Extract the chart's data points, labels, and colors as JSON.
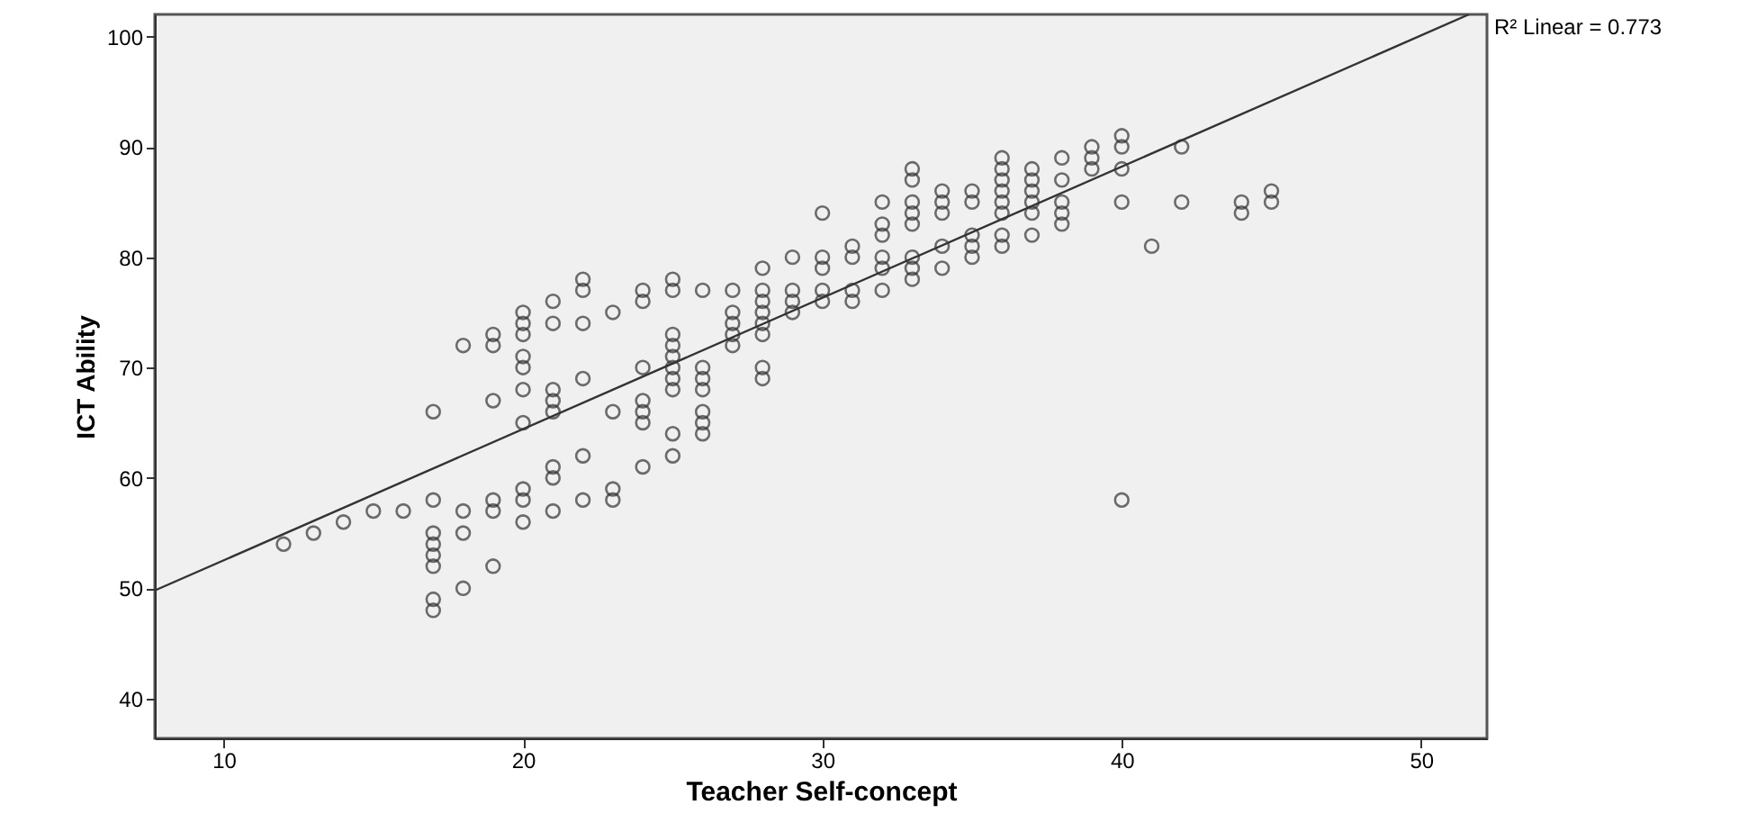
{
  "chart_data": {
    "type": "scatter",
    "xlabel": "Teacher Self-concept",
    "ylabel": "ICT Ability",
    "annotations": [
      "R² Linear = 0.773"
    ],
    "xlim": [
      7.7,
      52.2
    ],
    "ylim": [
      36.4,
      102
    ],
    "xticks": [
      10,
      20,
      30,
      40,
      50
    ],
    "yticks": [
      40,
      50,
      60,
      70,
      80,
      90,
      100
    ],
    "grid": false,
    "series": [
      {
        "marker": "circle",
        "color": "#333333",
        "x": [
          12,
          13,
          14,
          15,
          16,
          17,
          17,
          17,
          17,
          17,
          17,
          17,
          17,
          18,
          18,
          18,
          18,
          19,
          19,
          19,
          19,
          19,
          19,
          20,
          20,
          20,
          20,
          20,
          20,
          20,
          20,
          20,
          20,
          21,
          21,
          21,
          21,
          21,
          21,
          21,
          21,
          22,
          22,
          22,
          22,
          22,
          22,
          23,
          23,
          23,
          23,
          24,
          24,
          24,
          24,
          24,
          24,
          24,
          25,
          25,
          25,
          25,
          25,
          25,
          25,
          25,
          25,
          25,
          26,
          26,
          26,
          26,
          26,
          26,
          26,
          27,
          27,
          27,
          27,
          27,
          28,
          28,
          28,
          28,
          28,
          28,
          28,
          28,
          29,
          29,
          29,
          29,
          30,
          30,
          30,
          30,
          30,
          31,
          31,
          31,
          31,
          32,
          32,
          32,
          32,
          32,
          32,
          33,
          33,
          33,
          33,
          33,
          33,
          33,
          33,
          34,
          34,
          34,
          34,
          34,
          35,
          35,
          35,
          35,
          35,
          36,
          36,
          36,
          36,
          36,
          36,
          36,
          36,
          37,
          37,
          37,
          37,
          37,
          37,
          38,
          38,
          38,
          38,
          38,
          39,
          39,
          39,
          40,
          40,
          40,
          40,
          40,
          41,
          42,
          42,
          44,
          44,
          45,
          45
        ],
        "values": [
          54,
          55,
          56,
          57,
          57,
          66,
          58,
          55,
          54,
          53,
          52,
          49,
          48,
          72,
          57,
          55,
          50,
          73,
          72,
          67,
          58,
          57,
          52,
          75,
          74,
          73,
          71,
          70,
          68,
          65,
          59,
          58,
          56,
          76,
          74,
          68,
          67,
          66,
          61,
          60,
          57,
          78,
          77,
          74,
          69,
          62,
          58,
          75,
          66,
          59,
          58,
          77,
          76,
          70,
          67,
          66,
          65,
          61,
          78,
          77,
          73,
          72,
          71,
          70,
          69,
          68,
          64,
          62,
          77,
          70,
          69,
          68,
          66,
          65,
          64,
          77,
          75,
          74,
          73,
          72,
          79,
          77,
          76,
          75,
          74,
          73,
          70,
          69,
          80,
          77,
          76,
          75,
          84,
          80,
          79,
          77,
          76,
          81,
          80,
          77,
          76,
          85,
          83,
          82,
          80,
          79,
          77,
          88,
          87,
          85,
          84,
          83,
          80,
          79,
          78,
          86,
          85,
          84,
          81,
          79,
          86,
          85,
          82,
          81,
          80,
          89,
          88,
          87,
          86,
          85,
          84,
          82,
          81,
          88,
          87,
          86,
          85,
          84,
          82,
          89,
          87,
          85,
          84,
          83,
          90,
          89,
          88,
          91,
          90,
          88,
          85,
          58,
          81,
          90,
          85,
          85,
          84,
          86,
          85
        ]
      },
      {
        "type": "line",
        "marker": "none",
        "color": "#333333",
        "x": [
          7.7,
          51.6
        ],
        "values": [
          49.8,
          102
        ]
      }
    ]
  }
}
